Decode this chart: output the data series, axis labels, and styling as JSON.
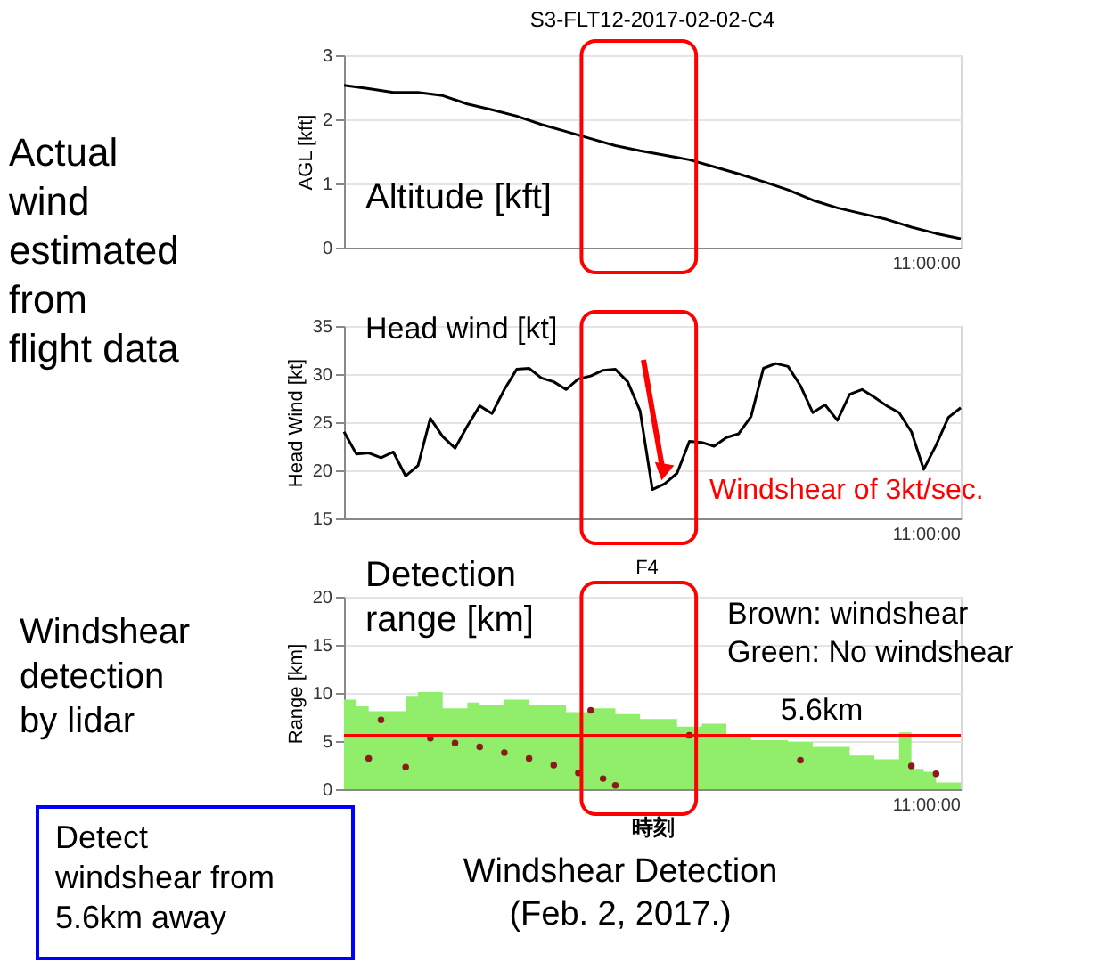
{
  "chart_data": [
    {
      "type": "line",
      "title": "S3-FLT12-2017-02-02-C4",
      "ylabel": "AGL [kft]",
      "ylim": [
        0,
        3
      ],
      "yticks": [
        0,
        1,
        2,
        3
      ],
      "grid": "y",
      "categories": [
        null,
        null,
        null,
        null,
        null,
        null,
        null,
        null,
        null,
        null,
        null,
        null,
        null,
        null,
        null,
        null,
        null,
        null,
        null,
        null,
        null,
        null,
        null,
        null,
        null,
        null
      ],
      "series": [
        {
          "color": "#000000",
          "values": [
            2.53,
            2.48,
            2.42,
            2.42,
            2.37,
            2.24,
            2.15,
            2.05,
            1.92,
            1.81,
            1.7,
            1.59,
            1.51,
            1.44,
            1.37,
            1.26,
            1.15,
            1.03,
            0.9,
            0.74,
            0.62,
            0.53,
            0.44,
            0.32,
            0.22,
            0.14
          ]
        }
      ],
      "annotations": [
        "Actual\nwind\nestimated\nfrom\nflight data",
        "Altitude [kft]",
        "11:00:00"
      ]
    },
    {
      "type": "line",
      "ylabel": "Head Wind [kt]",
      "ylim": [
        15,
        35
      ],
      "yticks": [
        15,
        20,
        25,
        30,
        35
      ],
      "grid": "y",
      "categories": [
        null,
        null,
        null,
        null,
        null,
        null,
        null,
        null,
        null,
        null,
        null,
        null,
        null,
        null,
        null,
        null,
        null,
        null,
        null,
        null,
        null,
        null,
        null,
        null,
        null,
        null,
        null,
        null,
        null,
        null,
        null,
        null,
        null,
        null,
        null,
        null,
        null,
        null,
        null,
        null,
        null,
        null,
        null,
        null,
        null,
        null,
        null,
        null,
        null,
        null,
        null
      ],
      "series": [
        {
          "color": "#000000",
          "values": [
            24.0,
            21.7,
            21.8,
            21.3,
            21.9,
            19.4,
            20.5,
            25.4,
            23.5,
            22.3,
            24.6,
            26.7,
            25.9,
            28.4,
            30.5,
            30.6,
            29.6,
            29.2,
            28.4,
            29.5,
            29.8,
            30.4,
            30.5,
            29.2,
            26.2,
            18.0,
            18.6,
            19.7,
            23.0,
            22.9,
            22.5,
            23.4,
            23.8,
            25.6,
            30.6,
            31.1,
            30.8,
            28.8,
            26.0,
            26.8,
            25.2,
            27.9,
            28.4,
            27.6,
            26.7,
            26.0,
            24.0,
            20.1,
            22.6,
            25.5,
            26.5
          ]
        }
      ],
      "annotations": [
        "Head wind [kt]",
        "Windshear of 3kt/sec.",
        "11:00:00"
      ]
    },
    {
      "type": "area",
      "xlabel": "時刻",
      "ylabel": "Range [km]",
      "ylim": [
        0,
        20
      ],
      "yticks": [
        0,
        5,
        10,
        15,
        20
      ],
      "grid": "y",
      "categories": [
        null,
        null,
        null,
        null,
        null,
        null,
        null,
        null,
        null,
        null,
        null,
        null,
        null,
        null,
        null,
        null,
        null,
        null,
        null,
        null,
        null,
        null,
        null,
        null,
        null,
        null,
        null,
        null,
        null,
        null,
        null,
        null,
        null,
        null,
        null,
        null,
        null,
        null,
        null,
        null,
        null,
        null,
        null,
        null,
        null,
        null,
        null,
        null,
        null,
        null,
        null
      ],
      "series": [
        {
          "type": "area",
          "color": "#90ee6a",
          "values": [
            9.3,
            8.6,
            8.1,
            8.1,
            8.1,
            9.7,
            10.1,
            10.1,
            8.4,
            8.4,
            9.0,
            8.8,
            8.8,
            9.3,
            9.3,
            8.8,
            8.8,
            8.8,
            8.0,
            8.0,
            8.4,
            8.4,
            7.8,
            7.8,
            7.3,
            7.3,
            7.3,
            6.5,
            6.5,
            6.8,
            6.8,
            5.6,
            5.6,
            5.1,
            5.1,
            5.1,
            4.9,
            4.9,
            4.4,
            4.4,
            4.4,
            3.5,
            3.5,
            3.1,
            3.1,
            5.9,
            2.1,
            1.8,
            0.7,
            0.7,
            0.2
          ]
        },
        {
          "type": "scatter",
          "color": "#8b1a1a",
          "values": [
            null,
            null,
            3.2,
            7.2,
            null,
            2.3,
            null,
            5.3,
            null,
            4.8,
            null,
            4.4,
            null,
            3.8,
            null,
            3.2,
            null,
            2.5,
            null,
            1.7,
            8.2,
            1.1,
            0.4,
            null,
            null,
            null,
            null,
            null,
            5.6,
            null,
            null,
            null,
            null,
            null,
            null,
            null,
            null,
            3.0,
            null,
            null,
            null,
            null,
            null,
            null,
            null,
            null,
            2.4,
            null,
            1.6,
            null,
            null
          ]
        }
      ],
      "ref_lines": [
        {
          "axis": "y",
          "value": 5.6,
          "label": "5.6km",
          "color": "#ff0000"
        }
      ],
      "annotations": [
        "F4",
        "Detection\nrange [km]",
        "Brown: windshear\nGreen: No windshear",
        "Windshear\ndetection\nby lidar",
        "Detect\nwindshear from\n5.6km away",
        "Windshear Detection\n(Feb. 2, 2017.)",
        "11:00:00"
      ]
    }
  ]
}
